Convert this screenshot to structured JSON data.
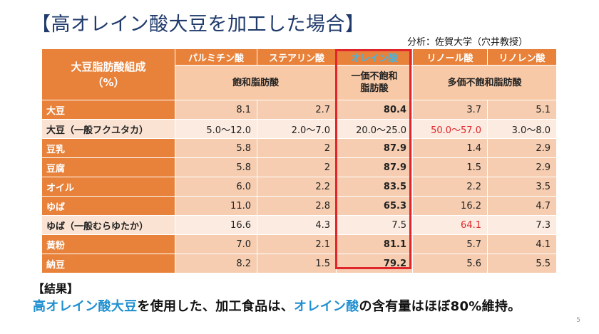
{
  "title": "【高オレイン酸大豆を加工した場合】",
  "source": "分析：佐賀大学（穴井教授）",
  "table": {
    "corner_label_line1": "大豆脂肪酸組成",
    "corner_label_line2": "（%）",
    "fatty_acids": [
      "パルミチン酸",
      "ステアリン酸",
      "オレイン酸",
      "リノール酸",
      "リノレン酸"
    ],
    "categories": {
      "saturated": "飽和脂肪酸",
      "mono_line1": "一価不飽和",
      "mono_line2": "脂肪酸",
      "poly": "多価不飽和脂肪酸"
    },
    "rows": [
      {
        "name": "大豆",
        "values": [
          "8.1",
          "2.7",
          "80.4",
          "3.7",
          "5.1"
        ]
      },
      {
        "name": "大豆（一般フクユタカ）",
        "values": [
          "5.0〜12.0",
          "2.0〜7.0",
          "20.0〜25.0",
          "50.0〜57.0",
          "3.0〜8.0"
        ]
      },
      {
        "name": "豆乳",
        "values": [
          "5.8",
          "2",
          "87.9",
          "1.4",
          "2.9"
        ]
      },
      {
        "name": "豆腐",
        "values": [
          "5.8",
          "2",
          "87.9",
          "1.5",
          "2.9"
        ]
      },
      {
        "name": "オイル",
        "values": [
          "6.0",
          "2.2",
          "83.5",
          "2.2",
          "3.5"
        ]
      },
      {
        "name": "ゆば",
        "values": [
          "11.0",
          "2.8",
          "65.3",
          "16.2",
          "4.7"
        ]
      },
      {
        "name": "ゆば（一般むらゆたか）",
        "values": [
          "16.6",
          "4.3",
          "7.5",
          "64.1",
          "7.3"
        ]
      },
      {
        "name": "黄粉",
        "values": [
          "7.0",
          "2.1",
          "81.1",
          "5.7",
          "4.1"
        ]
      },
      {
        "name": "納豆",
        "values": [
          "8.2",
          "1.5",
          "79.2",
          "5.6",
          "5.5"
        ]
      }
    ]
  },
  "result": {
    "heading": "【結果】",
    "part1": "高オレイン酸大豆",
    "part2": "を使用した、加工食品は、",
    "part3": "オレイン酸",
    "part4": "の含有量はほぼ80%維持。"
  },
  "page_number": "5",
  "colors": {
    "header_orange": "#e8823a",
    "highlight_blue": "#3fb7e8",
    "emphasis_red": "#e0262b",
    "title_navy": "#1f3a6b"
  }
}
